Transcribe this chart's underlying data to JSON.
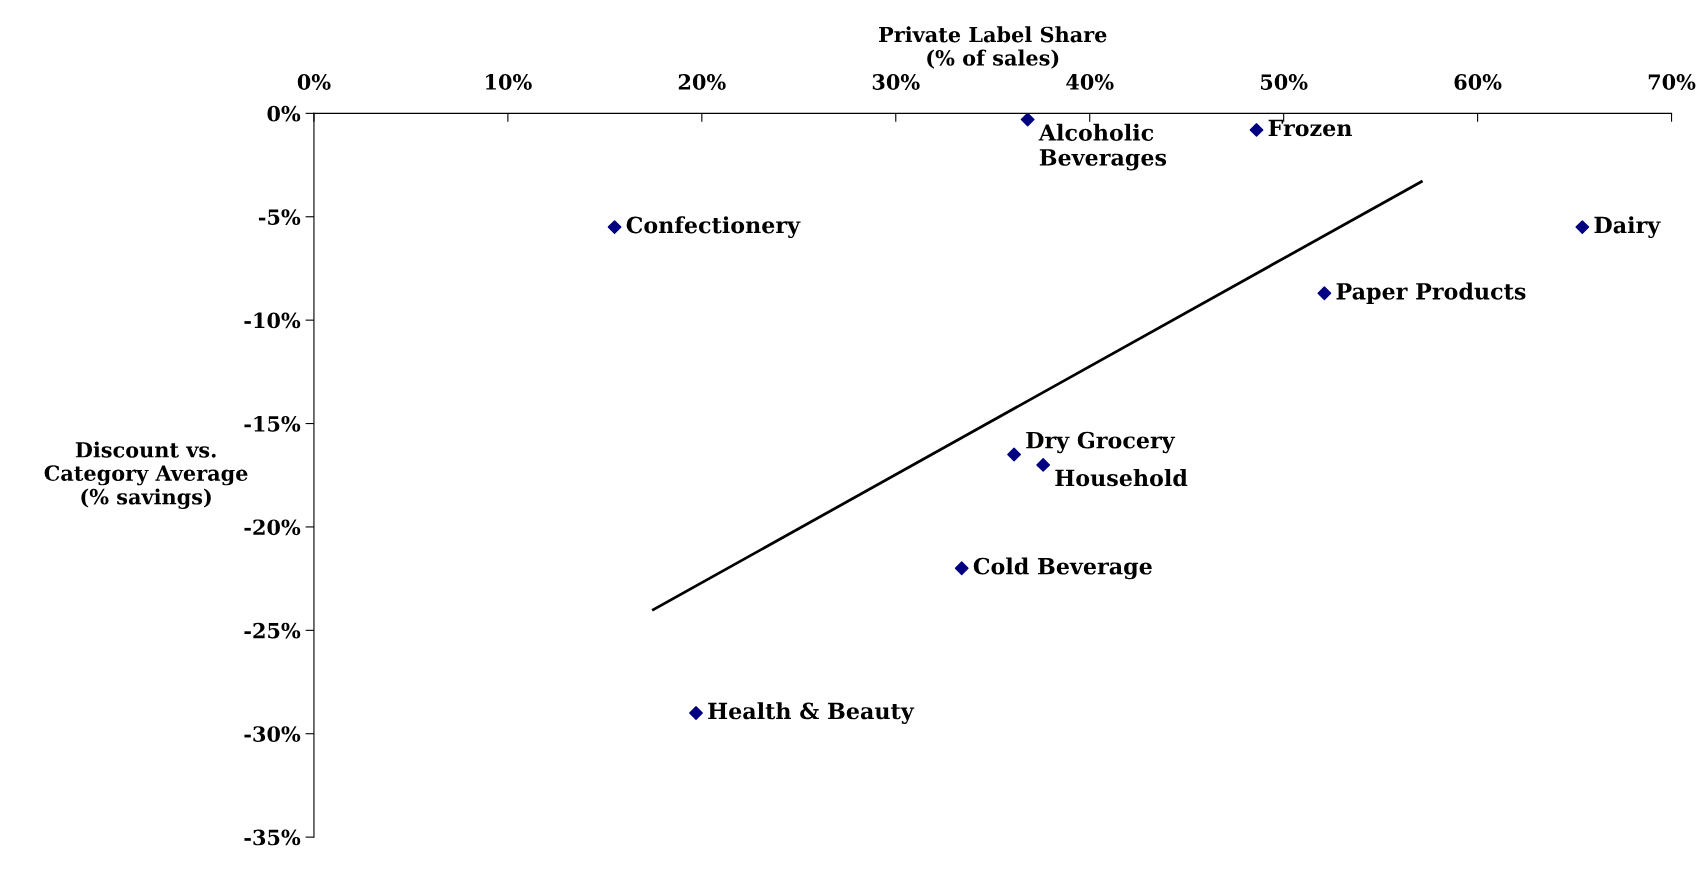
{
  "chart_data": {
    "type": "scatter",
    "xlabel": "Private Label Share\n(% of sales)",
    "ylabel": "Discount vs.\nCategory Average\n(% savings)",
    "xlim": [
      0,
      70
    ],
    "xticks": [
      {
        "value": 0,
        "label": "0%"
      },
      {
        "value": 10,
        "label": "10%"
      },
      {
        "value": 20,
        "label": "20%"
      },
      {
        "value": 30,
        "label": "30%"
      },
      {
        "value": 40,
        "label": "40%"
      },
      {
        "value": 50,
        "label": "50%"
      },
      {
        "value": 60,
        "label": "60%"
      },
      {
        "value": 70,
        "label": "70%"
      }
    ],
    "ylim": [
      -35,
      0
    ],
    "yticks": [
      {
        "value": 0,
        "label": "0%"
      },
      {
        "value": -5,
        "label": "-5%"
      },
      {
        "value": -10,
        "label": "-10%"
      },
      {
        "value": -15,
        "label": "-15%"
      },
      {
        "value": -20,
        "label": "-20%"
      },
      {
        "value": -25,
        "label": "-25%"
      },
      {
        "value": -30,
        "label": "-30%"
      },
      {
        "value": -35,
        "label": "-35%"
      }
    ],
    "grid": false,
    "legend": false,
    "series": [
      {
        "marker": "diamond",
        "color": "#000080",
        "x": [
          36.8,
          48.6,
          15.5,
          65.4,
          52.1,
          36.1,
          37.6,
          33.4,
          19.7
        ],
        "values": [
          -0.3,
          -0.8,
          -5.5,
          -5.5,
          -8.7,
          -16.5,
          -17.0,
          -22.0,
          -29.0
        ]
      },
      {
        "type": "line",
        "marker": "none",
        "color": "#000000",
        "x": [
          17.5,
          57.1
        ],
        "values": [
          -24.0,
          -3.3
        ]
      }
    ],
    "annotations": [
      {
        "text": "Alcoholic\nBeverages",
        "x": 36.8,
        "y": -0.3
      },
      {
        "text": "Frozen",
        "x": 48.6,
        "y": -0.8
      },
      {
        "text": "Confectionery",
        "x": 15.5,
        "y": -5.5
      },
      {
        "text": "Dairy",
        "x": 65.4,
        "y": -5.5
      },
      {
        "text": "Paper Products",
        "x": 52.1,
        "y": -8.7
      },
      {
        "text": "Dry Grocery",
        "x": 36.1,
        "y": -16.5
      },
      {
        "text": "Household",
        "x": 37.6,
        "y": -17.0
      },
      {
        "text": "Cold Beverage",
        "x": 33.4,
        "y": -22.0
      },
      {
        "text": "Health & Beauty",
        "x": 19.7,
        "y": -29.0
      }
    ]
  }
}
